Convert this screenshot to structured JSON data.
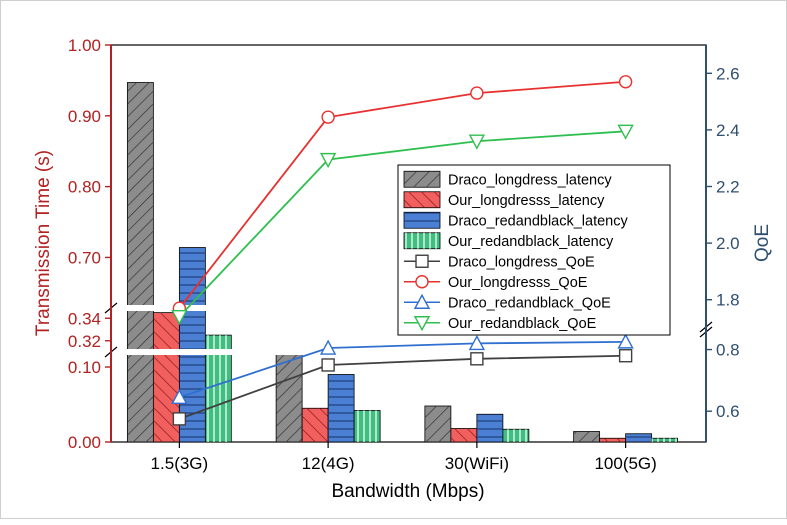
{
  "chart_data": {
    "type": "bar",
    "title": "",
    "xlabel": "Bandwidth (Mbps)",
    "ylabel_left": "Transmission Time (s)",
    "ylabel_right": "QoE",
    "categories": [
      {
        "main": "1.5",
        "sub": "(3G)"
      },
      {
        "main": "12",
        "sub": "(4G)"
      },
      {
        "main": "30",
        "sub": "(WiFi)"
      },
      {
        "main": "100",
        "sub": "(5G)"
      }
    ],
    "left_axis": {
      "lower_range": [
        0,
        0.12
      ],
      "middle_range": [
        0.31,
        0.35
      ],
      "upper_range": [
        0.63,
        1.0
      ],
      "tick_labels_lower": [
        "0.00",
        "0.10"
      ],
      "tick_labels_middle": [
        "0.32",
        "0.34"
      ],
      "tick_labels_upper": [
        "0.70",
        "0.80",
        "0.90",
        "1.00"
      ],
      "tick_values_lower": [
        0,
        0.1
      ],
      "tick_values_middle": [
        0.32,
        0.34
      ],
      "tick_values_upper": [
        0.7,
        0.8,
        0.9,
        1.0
      ],
      "color": "#b22222"
    },
    "right_axis": {
      "lower_range": [
        0.5,
        0.87
      ],
      "upper_range": [
        1.7,
        2.7
      ],
      "tick_labels_lower": [
        "0.6",
        "0.8"
      ],
      "tick_labels_upper": [
        "1.8",
        "2.0",
        "2.2",
        "2.4",
        "2.6"
      ],
      "tick_values_lower": [
        0.6,
        0.8
      ],
      "tick_values_upper": [
        1.8,
        2.0,
        2.2,
        2.4,
        2.6
      ],
      "color": "#2f4f6f"
    },
    "bar_series": [
      {
        "name": "Draco_longdress_latency",
        "values": [
          0.947,
          0.135,
          0.048,
          0.014
        ],
        "fill": "#8c8c8c",
        "pattern": "diag-right"
      },
      {
        "name": "Our_longdresss_latency",
        "values": [
          0.345,
          0.045,
          0.018,
          0.005
        ],
        "fill": "#f25f5f",
        "pattern": "diag-left"
      },
      {
        "name": "Draco_redandblack_latency",
        "values": [
          0.714,
          0.09,
          0.037,
          0.011
        ],
        "fill": "#4a7fd4",
        "pattern": "horizontal"
      },
      {
        "name": "Our_redandblack_latency",
        "values": [
          0.325,
          0.042,
          0.017,
          0.005
        ],
        "fill": "#3fbf7f",
        "pattern": "vertical"
      }
    ],
    "line_series": [
      {
        "name": "Draco_longdress_QoE",
        "values": [
          0.575,
          0.75,
          0.77,
          0.78
        ],
        "color": "#404040",
        "marker": "square"
      },
      {
        "name": "Our_longdresss_QoE",
        "values": [
          1.77,
          2.445,
          2.53,
          2.57
        ],
        "color": "#e8312f",
        "marker": "circle"
      },
      {
        "name": "Draco_redandblack_QoE",
        "values": [
          0.645,
          0.805,
          0.82,
          0.825
        ],
        "color": "#2f6fd0",
        "marker": "triangle-up"
      },
      {
        "name": "Our_redandblack_QoE",
        "values": [
          1.74,
          2.295,
          2.36,
          2.395
        ],
        "color": "#2fbf4f",
        "marker": "triangle-down"
      }
    ],
    "legend": {
      "position": "right-middle"
    }
  }
}
